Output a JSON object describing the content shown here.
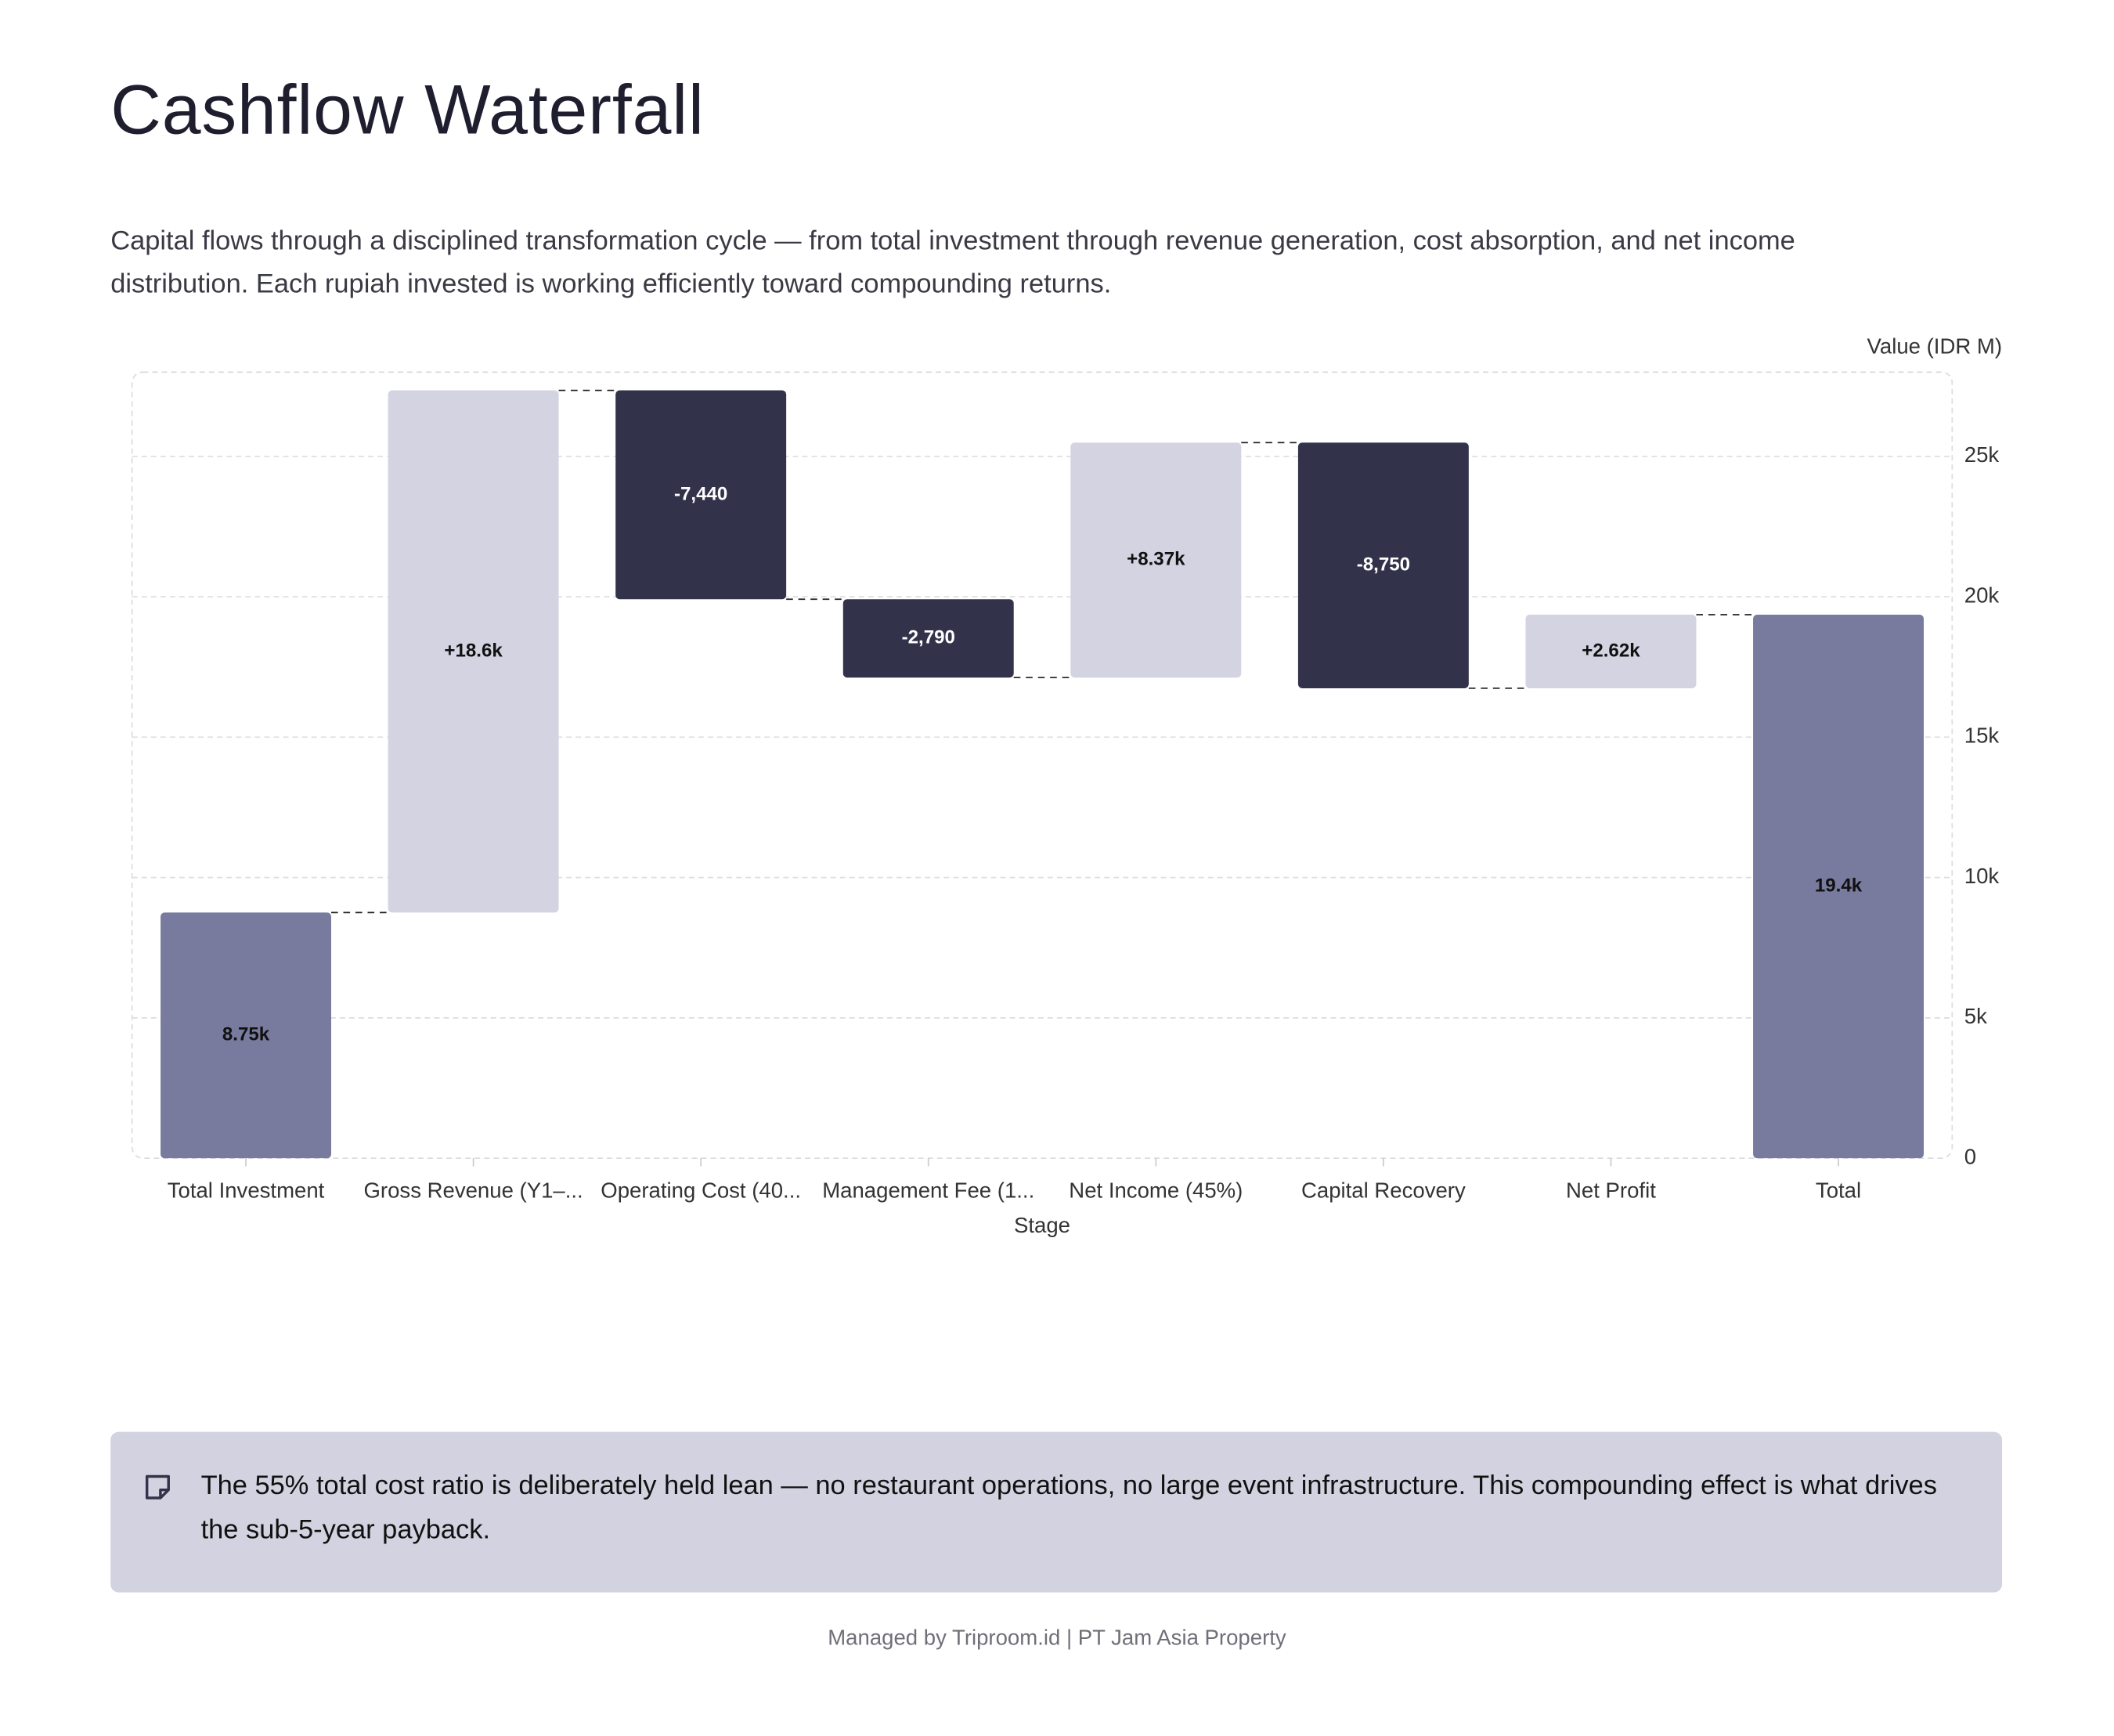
{
  "header": {
    "title": "Cashflow Waterfall",
    "description": "Capital flows through a disciplined transformation cycle — from total investment through revenue generation, cost absorption, and net income distribution. Each rupiah invested is working efficiently toward compounding returns."
  },
  "chart_data": {
    "type": "waterfall",
    "categories": [
      "Total Investment",
      "Gross Revenue (Y1–...",
      "Operating Cost (40...",
      "Management Fee (1...",
      "Net Income (45%)",
      "Capital Recovery",
      "Net Profit",
      "Total"
    ],
    "measure": [
      "absolute",
      "relative",
      "relative",
      "relative",
      "relative",
      "relative",
      "relative",
      "total"
    ],
    "values": [
      8750,
      18600,
      -7440,
      -2790,
      8370,
      -8750,
      2620,
      19360
    ],
    "value_labels": [
      "8.75k",
      "+18.6k",
      "-7,440",
      "-2,790",
      "+8.37k",
      "-8,750",
      "+2.62k",
      "19.4k"
    ],
    "colors": {
      "total": "#787a9e",
      "increase": "#d3d3e1",
      "decrease": "#32334a"
    },
    "ylim": [
      0,
      28000
    ],
    "yticks": [
      0,
      {
        "value": 5000,
        "label": "5k"
      },
      {
        "value": 10000,
        "label": "10k"
      },
      {
        "value": 15000,
        "label": "15k"
      },
      {
        "value": 20000,
        "label": "20k"
      },
      {
        "value": 25000,
        "label": "25k"
      }
    ],
    "y_label": "Value (IDR M)",
    "x_label": "Stage",
    "grid": true
  },
  "note": {
    "text": "The 55% total cost ratio is deliberately held lean — no restaurant operations, no large event infrastructure. This compounding effect is what drives the sub-5-year payback."
  },
  "footer": {
    "text": "Managed by Triproom.id | PT Jam Asia Property"
  }
}
